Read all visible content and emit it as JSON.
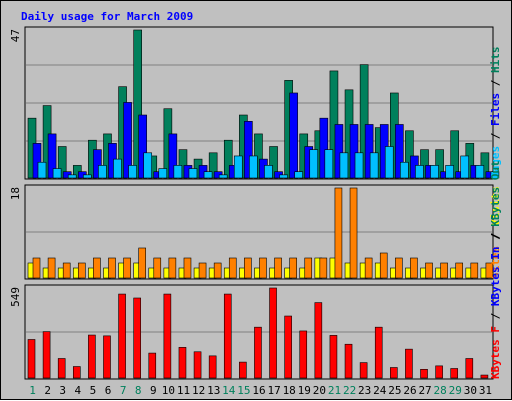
{
  "chart_data": {
    "type": "bar",
    "title": "Daily usage for March 2009",
    "categories": [
      "1",
      "2",
      "3",
      "4",
      "5",
      "6",
      "7",
      "8",
      "9",
      "10",
      "11",
      "12",
      "13",
      "14",
      "15",
      "16",
      "17",
      "18",
      "19",
      "20",
      "21",
      "22",
      "23",
      "24",
      "25",
      "26",
      "27",
      "28",
      "29",
      "30",
      "31"
    ],
    "weekend_days": [
      "1",
      "7",
      "8",
      "14",
      "15",
      "21",
      "22",
      "28",
      "29"
    ],
    "colors": {
      "title": "#0000ff",
      "hits": "#00805c",
      "files": "#0000ff",
      "pages": "#00c0ff",
      "sites": "#ff8000",
      "visits": "#ffff00",
      "kb_f": "#ff0000",
      "kb_in": "#0000ff",
      "kb_out": "#00805c",
      "weekday_label": "#000000",
      "weekend_label": "#00805c",
      "grid": "#808080"
    },
    "panels": [
      {
        "name": "hits-files-pages",
        "ymax_label": "47",
        "ymax": 47,
        "series": [
          {
            "name": "Hits",
            "color": "#00805c",
            "values": [
              19,
              23,
              10,
              4,
              12,
              14,
              29,
              47,
              7,
              22,
              9,
              6,
              8,
              12,
              20,
              14,
              10,
              31,
              14,
              15,
              34,
              28,
              36,
              16,
              27,
              15,
              9,
              9,
              15,
              11,
              8
            ]
          },
          {
            "name": "Files",
            "color": "#0000ff",
            "values": [
              11,
              14,
              2,
              2,
              9,
              11,
              24,
              20,
              2,
              14,
              4,
              4,
              2,
              4,
              18,
              6,
              2,
              27,
              10,
              19,
              17,
              17,
              17,
              17,
              17,
              7,
              4,
              2,
              2,
              4,
              2
            ]
          },
          {
            "name": "Pages",
            "color": "#00c0ff",
            "values": [
              5,
              3,
              1,
              1,
              4,
              6,
              4,
              8,
              3,
              4,
              3,
              2,
              1,
              7,
              7,
              4,
              1,
              2,
              9,
              9,
              8,
              8,
              8,
              10,
              5,
              4,
              4,
              4,
              7,
              4,
              2
            ]
          }
        ],
        "side_label": [
          {
            "text": "Pages",
            "color": "#00c0ff"
          },
          {
            "text": " / ",
            "color": "#000000"
          },
          {
            "text": "Files",
            "color": "#0000ff"
          },
          {
            "text": " / ",
            "color": "#000000"
          },
          {
            "text": "Hits",
            "color": "#00805c"
          }
        ]
      },
      {
        "name": "visits-sites",
        "ymax_label": "18",
        "ymax": 18,
        "series": [
          {
            "name": "Visits",
            "color": "#ffff00",
            "values": [
              3,
              2,
              2,
              2,
              2,
              2,
              3,
              3,
              2,
              2,
              2,
              2,
              2,
              2,
              2,
              2,
              2,
              2,
              2,
              4,
              4,
              3,
              3,
              3,
              2,
              2,
              2,
              2,
              2,
              2,
              2
            ]
          },
          {
            "name": "Sites",
            "color": "#ff8000",
            "values": [
              4,
              4,
              3,
              3,
              4,
              4,
              4,
              6,
              4,
              4,
              4,
              3,
              3,
              4,
              4,
              4,
              4,
              4,
              4,
              4,
              18,
              18,
              4,
              5,
              4,
              4,
              3,
              3,
              3,
              3,
              3
            ]
          }
        ],
        "side_label": [
          {
            "text": "Sites",
            "color": "#ff8000"
          },
          {
            "text": " / ",
            "color": "#000000"
          },
          {
            "text": "Visits",
            "color": "#ffff00"
          }
        ]
      },
      {
        "name": "kbytes",
        "ymax_label": "549",
        "ymax": 549,
        "series": [
          {
            "name": "KBytes F",
            "color": "#ff0000",
            "values": [
              235,
              283,
              119,
              70,
              262,
              257,
              512,
              488,
              152,
              512,
              187,
              160,
              135,
              512,
              97,
              310,
              549,
              378,
              287,
              460,
              260,
              206,
              94,
              310,
              64,
              176,
              53,
              74,
              58,
              119,
              18
            ]
          }
        ],
        "side_label": [
          {
            "text": "KBytes F",
            "color": "#ff0000"
          },
          {
            "text": " / ",
            "color": "#000000"
          },
          {
            "text": "KBytes In",
            "color": "#0000ff"
          },
          {
            "text": " / ",
            "color": "#000000"
          },
          {
            "text": "KBytes Out",
            "color": "#00805c"
          }
        ]
      }
    ]
  }
}
